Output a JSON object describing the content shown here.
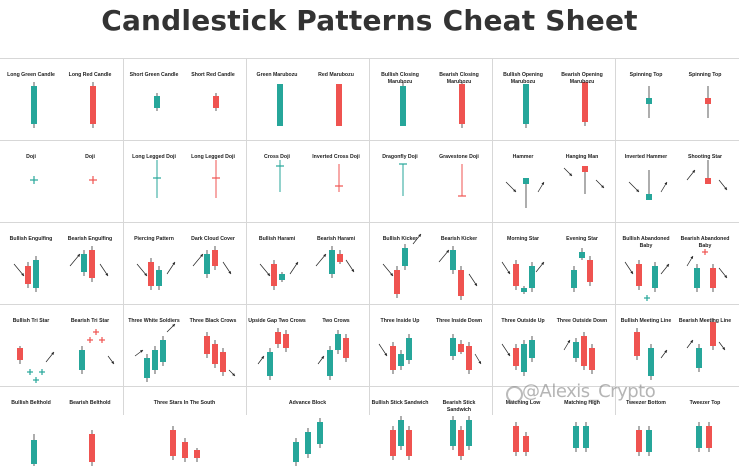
{
  "title": "Candlestick Patterns Cheat Sheet",
  "watermark": "@Alexis_Crypto",
  "colors": {
    "bull": "#26a69a",
    "bear": "#ef5350",
    "wick": "#333333"
  },
  "rows": [
    [
      {
        "labels": [
          "Long Green Candle",
          "Long Red Candle"
        ]
      },
      {
        "labels": [
          "Short Green Candle",
          "Short Red Candle"
        ]
      },
      {
        "labels": [
          "Green Marubozu",
          "Red Marubozu"
        ]
      },
      {
        "labels": [
          "Bullish Closing Marubozu",
          "Bearish Closing Marubozu"
        ]
      },
      {
        "labels": [
          "Bullish Opening Marubozu",
          "Bearish Opening Marubozu"
        ]
      },
      {
        "labels": [
          "Spinning Top",
          "Spinning Top"
        ]
      }
    ],
    [
      {
        "labels": [
          "Doji",
          "Doji"
        ]
      },
      {
        "labels": [
          "Long Legged Doji",
          "Long Legged Doji"
        ]
      },
      {
        "labels": [
          "Cross Doji",
          "Inverted Cross Doji"
        ]
      },
      {
        "labels": [
          "Dragonfly Doji",
          "Gravestone Doji"
        ]
      },
      {
        "labels": [
          "Hammer",
          "Hanging Man"
        ]
      },
      {
        "labels": [
          "Inverted Hammer",
          "Shooting Star"
        ]
      }
    ],
    [
      {
        "labels": [
          "Bullish Engulfing",
          "Bearish Engulfing"
        ]
      },
      {
        "labels": [
          "Piercing Pattern",
          "Dark Cloud Cover"
        ]
      },
      {
        "labels": [
          "Bullish Harami",
          "Bearish Harami"
        ]
      },
      {
        "labels": [
          "Bullish Kicker",
          "Bearish Kicker"
        ]
      },
      {
        "labels": [
          "Morning Star",
          "Evening Star"
        ]
      },
      {
        "labels": [
          "Bullish Abandoned Baby",
          "Bearish Abandoned Baby"
        ]
      }
    ],
    [
      {
        "labels": [
          "Bullish Tri Star",
          "Bearish Tri Star"
        ]
      },
      {
        "labels": [
          "Three White Soldiers",
          "Three Black Crows"
        ]
      },
      {
        "labels": [
          "Upside Gap Two Crows",
          "Two Crows"
        ]
      },
      {
        "labels": [
          "Three Inside Up",
          "Three Inside Down"
        ]
      },
      {
        "labels": [
          "Three Outside Up",
          "Three Outside Down"
        ]
      },
      {
        "labels": [
          "Bullish Meeting Line",
          "Bearish Meeting Line"
        ]
      }
    ],
    [
      {
        "labels": [
          "Bullish Belthold",
          "Bearish Belthold"
        ]
      },
      {
        "labels": [
          "Three Stars In The South"
        ]
      },
      {
        "labels": [
          "Advance Block"
        ]
      },
      {
        "labels": [
          "Bullish Stick Sandwich",
          "Bearish Stick Sandwich"
        ]
      },
      {
        "labels": [
          "Matching Low",
          "Matching High"
        ]
      },
      {
        "labels": [
          "Tweezer Bottom",
          "Tweezer Top"
        ]
      }
    ]
  ]
}
